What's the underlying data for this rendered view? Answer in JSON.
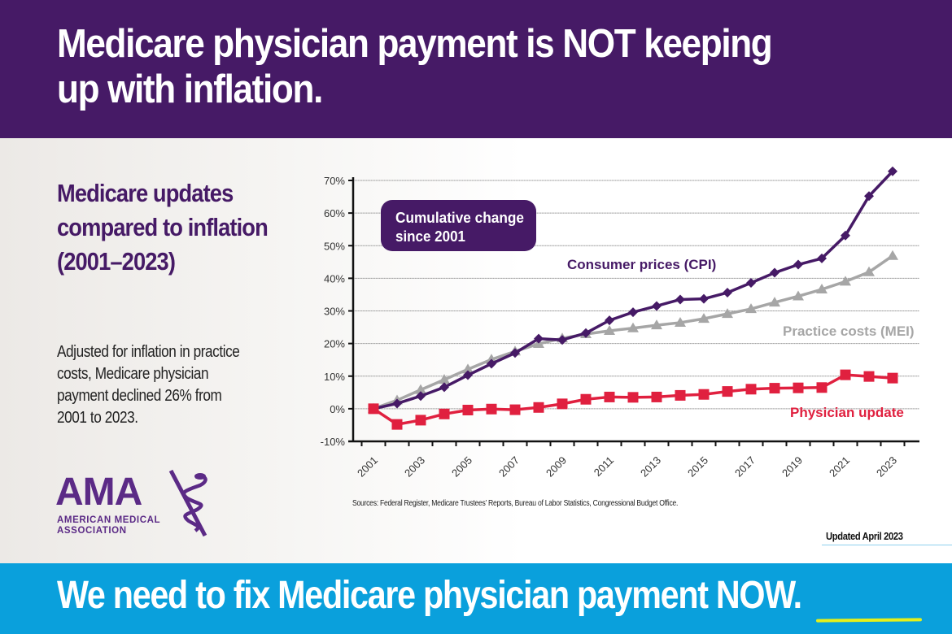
{
  "header": {
    "title": "Medicare physician payment is NOT keeping up with inflation."
  },
  "side": {
    "heading": "Medicare updates compared to inflation (2001–2023)",
    "body": "Adjusted for inflation in practice costs, Medicare physician payment declined 26% from 2001 to 2023."
  },
  "logo": {
    "abbr": "AMA",
    "line1": "AMERICAN MEDICAL",
    "line2": "ASSOCIATION"
  },
  "footer": {
    "sources": "Sources: Federal Register, Medicare Trustees’ Reports, Bureau of Labor Statistics, Congressional Budget Office.",
    "updated": "Updated April 2023",
    "cta": "We need to fix Medicare physician payment NOW."
  },
  "colors": {
    "brand_purple": "#461a66",
    "cta_blue": "#0aa0dc",
    "cpi": "#461a66",
    "mei": "#a6a6a6",
    "physician": "#e0203f"
  },
  "chart_data": {
    "type": "line",
    "title": "",
    "annotation": "Cumulative change since 2001",
    "xlabel": "",
    "ylabel": "",
    "x": [
      2001,
      2002,
      2003,
      2004,
      2005,
      2006,
      2007,
      2008,
      2009,
      2010,
      2011,
      2012,
      2013,
      2014,
      2015,
      2016,
      2017,
      2018,
      2019,
      2020,
      2021,
      2022,
      2023
    ],
    "x_tick_labels": [
      "2001",
      "2003",
      "2005",
      "2007",
      "2009",
      "2011",
      "2013",
      "2015",
      "2017",
      "2019",
      "2021",
      "2023"
    ],
    "ylim": [
      -10,
      70
    ],
    "y_ticks": [
      -10,
      0,
      10,
      20,
      30,
      40,
      50,
      60,
      70
    ],
    "y_tick_labels": [
      "-10%",
      "0%",
      "10%",
      "20%",
      "30%",
      "40%",
      "50%",
      "60%",
      "70%"
    ],
    "grid": true,
    "series": [
      {
        "name": "Consumer prices (CPI)",
        "marker": "diamond",
        "values": [
          0,
          1.6,
          3.9,
          6.6,
          10.3,
          13.8,
          17.1,
          21.5,
          21.1,
          23.2,
          27.1,
          29.6,
          31.5,
          33.5,
          33.7,
          35.6,
          38.6,
          41.7,
          44.2,
          46.1,
          53.1,
          65.2,
          72.8
        ]
      },
      {
        "name": "Practice costs (MEI)",
        "marker": "triangle",
        "values": [
          0,
          2.6,
          5.8,
          8.9,
          12.1,
          15.1,
          17.6,
          19.9,
          21.6,
          22.9,
          23.9,
          24.7,
          25.6,
          26.4,
          27.6,
          29.1,
          30.6,
          32.6,
          34.5,
          36.6,
          39,
          41.9,
          46.9
        ]
      },
      {
        "name": "Physician update",
        "marker": "square",
        "values": [
          0,
          -4.8,
          -3.5,
          -1.6,
          -0.4,
          -0.1,
          -0.3,
          0.4,
          1.5,
          2.9,
          3.6,
          3.5,
          3.6,
          4.1,
          4.4,
          5.3,
          6,
          6.3,
          6.4,
          6.5,
          10.4,
          9.9,
          9.4
        ]
      }
    ]
  }
}
